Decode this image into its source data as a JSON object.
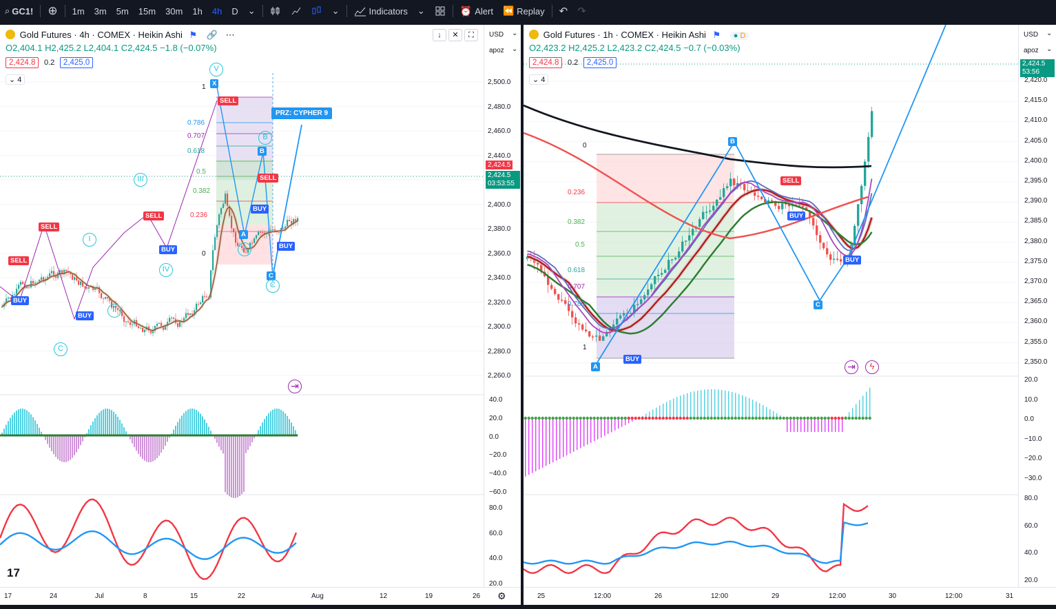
{
  "topbar": {
    "symbol": "GC1!",
    "add_symbol": "⊕",
    "timeframes": [
      "1m",
      "3m",
      "5m",
      "15m",
      "30m",
      "1h",
      "4h",
      "D"
    ],
    "active_timeframe": "4h",
    "indicators": "Indicators",
    "alert": "Alert",
    "replay": "Replay"
  },
  "left": {
    "title": "Gold Futures · 4h · COMEX · Heikin Ashi",
    "ohlc": {
      "o": "O2,404.1",
      "h": "H2,425.2",
      "l": "L2,404.1",
      "c": "C2,424.5",
      "chg": "−1.8 (−0.07%)"
    },
    "bid": "2,424.8",
    "spread": "0.2",
    "ask": "2,425.0",
    "collapse": "4",
    "currency": "USD",
    "scale_mode": "apoz",
    "price_labels": [
      "2,500.0",
      "2,480.0",
      "2,460.0",
      "2,440.0",
      "2,420.0",
      "2,400.0",
      "2,380.0",
      "2,360.0",
      "2,340.0",
      "2,320.0",
      "2,300.0",
      "2,280.0",
      "2,260.0"
    ],
    "current_price": "2,424.5",
    "current_price_2": "2,424.5",
    "countdown": "03:53:55",
    "osc_labels": [
      "40.0",
      "20.0",
      "0.0",
      "−20.0",
      "−40.0",
      "−60.0"
    ],
    "rsi_labels": [
      "80.0",
      "60.0",
      "40.0",
      "20.0"
    ],
    "time_labels": [
      "17",
      "24",
      "Jul",
      "8",
      "15",
      "22",
      "Aug",
      "12",
      "19",
      "26"
    ],
    "fib_levels": [
      "1",
      "0.786",
      "0.707",
      "0.618",
      "0.5",
      "0.382",
      "0.236",
      "0"
    ],
    "przLabel": "PRZ: CYPHER 9",
    "points": {
      "x": "X",
      "a": "A",
      "b": "B",
      "c": "C"
    },
    "waves": [
      "V",
      "III",
      "I",
      "IV",
      "II",
      "C",
      "A",
      "B",
      "C"
    ],
    "signals": {
      "sell": "SELL",
      "buy": "BUY"
    }
  },
  "right": {
    "title": "Gold Futures · 1h · COMEX · Heikin Ashi",
    "ohlc": {
      "o": "O2,423.2",
      "h": "H2,425.2",
      "l": "L2,423.2",
      "c": "C2,424.5",
      "chg": "−0.7 (−0.03%)"
    },
    "bid": "2,424.8",
    "spread": "0.2",
    "ask": "2,425.0",
    "collapse": "4",
    "badge_d": "D",
    "currency": "USD",
    "scale_mode": "apoz",
    "price_labels": [
      "2,420.0",
      "2,415.0",
      "2,410.0",
      "2,405.0",
      "2,400.0",
      "2,395.0",
      "2,390.0",
      "2,385.0",
      "2,380.0",
      "2,375.0",
      "2,370.0",
      "2,365.0",
      "2,360.0",
      "2,355.0",
      "2,350.0"
    ],
    "current_price": "2,424.5",
    "countdown": "53:56",
    "osc_labels": [
      "20.0",
      "10.0",
      "0.0",
      "−10.0",
      "−20.0",
      "−30.0"
    ],
    "rsi_labels": [
      "80.0",
      "60.0",
      "40.0",
      "20.0"
    ],
    "time_labels": [
      "25",
      "12:00",
      "26",
      "12:00",
      "29",
      "12:00",
      "30",
      "12:00",
      "31"
    ],
    "fib_levels": [
      "0",
      "0.236",
      "0.382",
      "0.5",
      "0.618",
      "0.707",
      "0.786",
      "1"
    ],
    "points": {
      "a": "A",
      "b": "B",
      "c": "C"
    },
    "signals": {
      "sell": "SELL",
      "buy": "BUY"
    }
  },
  "colors": {
    "accent": "#2962ff",
    "up": "#26a69a",
    "down": "#ef5350"
  }
}
